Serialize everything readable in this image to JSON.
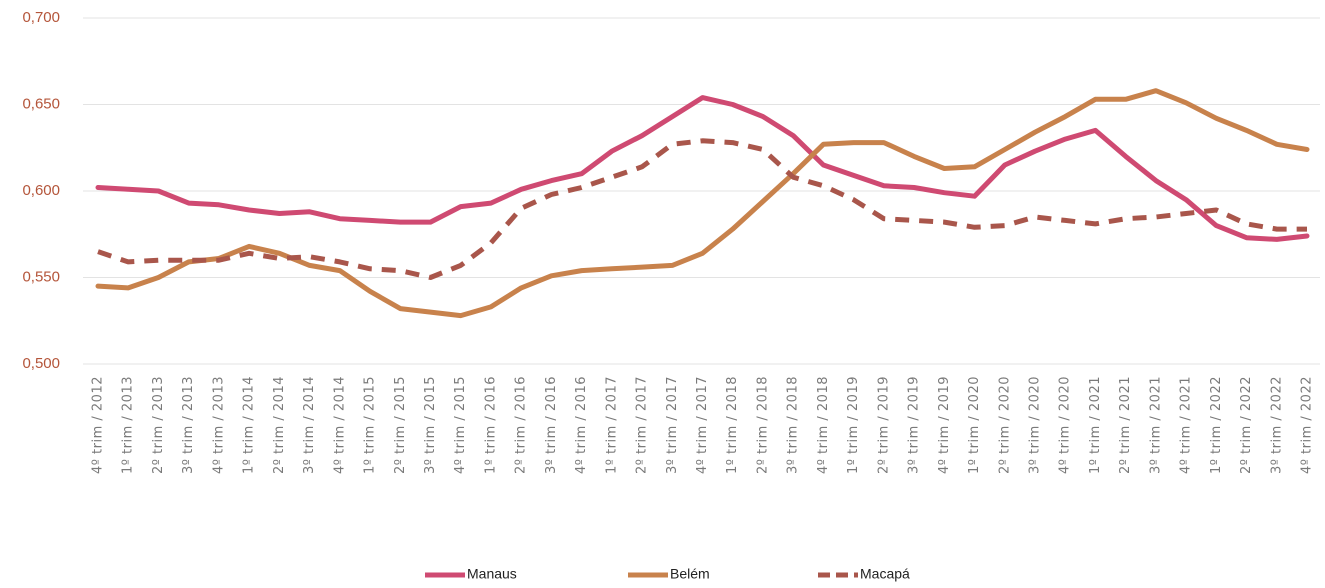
{
  "chart_data": {
    "type": "line",
    "categories": [
      "4º trim / 2012",
      "1º trim / 2013",
      "2º trim / 2013",
      "3º trim / 2013",
      "4º trim / 2013",
      "1º trim / 2014",
      "2º trim / 2014",
      "3º trim / 2014",
      "4º trim / 2014",
      "1º trim / 2015",
      "2º trim / 2015",
      "3º trim / 2015",
      "4º trim / 2015",
      "1º trim / 2016",
      "2º trim / 2016",
      "3º trim / 2016",
      "4º trim / 2016",
      "1º trim / 2017",
      "2º trim / 2017",
      "3º trim / 2017",
      "4º trim / 2017",
      "1º trim / 2018",
      "2º trim / 2018",
      "3º trim / 2018",
      "4º trim / 2018",
      "1º trim / 2019",
      "2º trim / 2019",
      "3º trim / 2019",
      "4º trim / 2019",
      "1º trim / 2020",
      "2º trim / 2020",
      "3º trim / 2020",
      "4º trim / 2020",
      "1º trim / 2021",
      "2º trim / 2021",
      "3º trim / 2021",
      "4º trim / 2021",
      "1º trim / 2022",
      "2º trim / 2022",
      "3º trim / 2022",
      "4º trim / 2022"
    ],
    "series": [
      {
        "name": "Manaus",
        "color": "#cf4a72",
        "dashed": false,
        "values": [
          0.602,
          0.601,
          0.6,
          0.593,
          0.592,
          0.589,
          0.587,
          0.588,
          0.584,
          0.583,
          0.582,
          0.582,
          0.591,
          0.593,
          0.601,
          0.606,
          0.61,
          0.623,
          0.632,
          0.643,
          0.654,
          0.65,
          0.643,
          0.632,
          0.615,
          0.609,
          0.603,
          0.602,
          0.599,
          0.597,
          0.615,
          0.623,
          0.63,
          0.635,
          0.62,
          0.606,
          0.595,
          0.58,
          0.573,
          0.572,
          0.574
        ]
      },
      {
        "name": "Belém",
        "color": "#c8824c",
        "dashed": false,
        "values": [
          0.545,
          0.544,
          0.55,
          0.559,
          0.561,
          0.568,
          0.564,
          0.557,
          0.554,
          0.542,
          0.532,
          0.53,
          0.528,
          0.533,
          0.544,
          0.551,
          0.554,
          0.555,
          0.556,
          0.557,
          0.564,
          0.578,
          0.594,
          0.61,
          0.627,
          0.628,
          0.628,
          0.62,
          0.613,
          0.614,
          0.624,
          0.634,
          0.643,
          0.653,
          0.653,
          0.658,
          0.651,
          0.642,
          0.635,
          0.627,
          0.624
        ]
      },
      {
        "name": "Macapá",
        "color": "#a9564b",
        "dashed": true,
        "values": [
          0.565,
          0.559,
          0.56,
          0.56,
          0.56,
          0.564,
          0.561,
          0.562,
          0.559,
          0.555,
          0.554,
          0.55,
          0.557,
          0.57,
          0.59,
          0.598,
          0.602,
          0.608,
          0.614,
          0.627,
          0.629,
          0.628,
          0.624,
          0.608,
          0.603,
          0.595,
          0.584,
          0.583,
          0.582,
          0.579,
          0.58,
          0.585,
          0.583,
          0.581,
          0.584,
          0.585,
          0.587,
          0.589,
          0.581,
          0.578,
          0.578
        ]
      }
    ],
    "ylim": [
      0.5,
      0.7
    ],
    "yticks": [
      {
        "value": 0.5,
        "label": "0,500"
      },
      {
        "value": 0.55,
        "label": "0,550"
      },
      {
        "value": 0.6,
        "label": "0,600"
      },
      {
        "value": 0.65,
        "label": "0,650"
      },
      {
        "value": 0.7,
        "label": "0,700"
      }
    ],
    "grid": true,
    "legend": "bottom"
  }
}
